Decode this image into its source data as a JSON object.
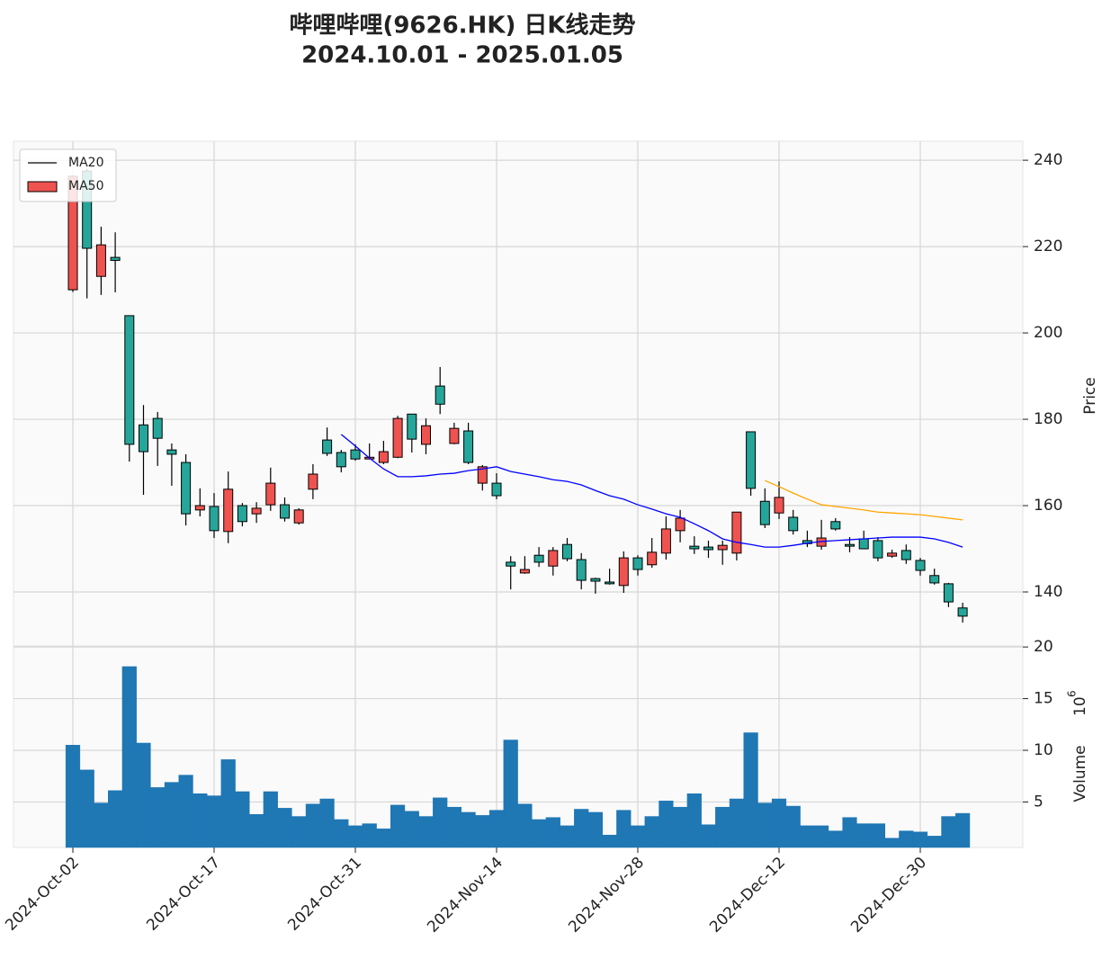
{
  "chart_data": {
    "type": "candlestick",
    "title": "哔哩哔哩(9626.HK) 日K线走势",
    "subtitle": "2024.10.01 - 2025.01.05",
    "categories": [
      "2024-Oct-02",
      null,
      null,
      null,
      null,
      null,
      null,
      null,
      null,
      null,
      "2024-Oct-17",
      null,
      null,
      null,
      null,
      null,
      null,
      null,
      null,
      null,
      "2024-Oct-31",
      null,
      null,
      null,
      null,
      null,
      null,
      null,
      null,
      null,
      "2024-Nov-14",
      null,
      null,
      null,
      null,
      null,
      null,
      null,
      null,
      null,
      "2024-Nov-28",
      null,
      null,
      null,
      null,
      null,
      null,
      null,
      null,
      null,
      "2024-Dec-12",
      null,
      null,
      null,
      null,
      null,
      null,
      null,
      null,
      null,
      "2024-Dec-30",
      null,
      null,
      null
    ],
    "open": [
      210,
      237.5,
      213.1,
      217.5,
      204,
      178.7,
      180.2,
      172.9,
      170,
      159,
      159.8,
      154,
      160,
      158.1,
      160.2,
      160.2,
      156,
      163.8,
      175.2,
      172.3,
      172.9,
      170.8,
      170,
      171.2,
      181.2,
      174.2,
      187.7,
      174.4,
      177.3,
      165.2,
      165.2,
      146.9,
      144.4,
      148.5,
      146,
      151,
      147.5,
      143.1,
      142.3,
      141.5,
      147.9,
      146.3,
      149,
      154.2,
      150.6,
      150.4,
      149.8,
      149,
      177.1,
      161,
      158.3,
      157.3,
      151.9,
      150.6,
      156.3,
      151,
      152.3,
      151.9,
      148.3,
      149.6,
      147.3,
      143.8,
      141.9,
      136.3
    ],
    "high": [
      236.5,
      238,
      224.6,
      223.3,
      204,
      183.3,
      181.7,
      174.4,
      171.9,
      164,
      162.9,
      167.9,
      160.6,
      160.8,
      168.8,
      161.9,
      159.4,
      169.6,
      178.1,
      172.9,
      174.2,
      174.4,
      175,
      180.8,
      181.2,
      180.2,
      192.1,
      179.2,
      179.2,
      169.4,
      167.5,
      148.3,
      148.3,
      150.4,
      150.4,
      152.5,
      149,
      143.3,
      145.4,
      149.4,
      148.5,
      152.5,
      157.5,
      159,
      152.9,
      151.9,
      151.9,
      158.5,
      177.1,
      164,
      165.6,
      159,
      154.2,
      156.7,
      157.1,
      152.7,
      154.2,
      152.7,
      149.8,
      151,
      147.9,
      145.4,
      142.1,
      137.5
    ],
    "low": [
      209.5,
      208,
      208.8,
      209.4,
      170.2,
      162.5,
      169.2,
      164.6,
      155.4,
      157.5,
      152.5,
      151.3,
      155.2,
      156,
      158.8,
      156.3,
      155.6,
      161.5,
      171.5,
      167.7,
      170.4,
      170.8,
      169.6,
      171,
      172.3,
      171.9,
      181.2,
      174.2,
      169.6,
      163.5,
      161.5,
      140.6,
      144.2,
      145.8,
      143.8,
      147.1,
      140.6,
      139.6,
      141.7,
      139.8,
      143.8,
      145.6,
      147.5,
      151.5,
      148.8,
      147.9,
      146.3,
      147.3,
      162.3,
      154.8,
      156.9,
      153.3,
      150.4,
      149.8,
      154.2,
      149.2,
      150,
      147.1,
      147.9,
      146.5,
      143.8,
      141.7,
      136.5,
      132.9
    ],
    "close": [
      236.3,
      219.6,
      220.4,
      216.8,
      174.2,
      172.5,
      175.6,
      171.9,
      158.1,
      160,
      154.2,
      163.8,
      156.3,
      159.4,
      165.2,
      157.1,
      159,
      167.3,
      172.1,
      169,
      170.8,
      171.2,
      172.5,
      180.2,
      175.4,
      178.5,
      183.5,
      177.9,
      170,
      169,
      162.3,
      146,
      145.2,
      146.9,
      149.6,
      147.7,
      142.7,
      142.5,
      141.9,
      147.9,
      145.2,
      149.2,
      154.6,
      157.1,
      150,
      149.8,
      150.8,
      158.5,
      164,
      155.6,
      161.9,
      154.2,
      151.2,
      152.5,
      154.6,
      150.6,
      150,
      147.9,
      149,
      147.5,
      145,
      142.1,
      137.7,
      134.4
    ],
    "up_color": "#ef5350",
    "down_color": "#26a69a",
    "ylim": [
      127.5,
      244.4
    ],
    "yticks": [
      140,
      160,
      180,
      200,
      220,
      240
    ],
    "ylabel": "Price",
    "grid": true,
    "legend": "upper left",
    "series": [
      {
        "name": "MA20",
        "color": "#0000ff",
        "values": [
          null,
          null,
          null,
          null,
          null,
          null,
          null,
          null,
          null,
          null,
          null,
          null,
          null,
          null,
          null,
          null,
          null,
          null,
          null,
          176.5,
          173.8,
          171,
          168.5,
          166.7,
          166.7,
          166.9,
          167.3,
          167.5,
          168.1,
          168.5,
          169,
          167.9,
          167.3,
          166.7,
          166,
          165.6,
          164.8,
          163.5,
          162.3,
          161.5,
          160.2,
          159.2,
          158.1,
          157.3,
          155.8,
          154.2,
          152.3,
          151.5,
          151,
          150.4,
          150.4,
          150.8,
          151.3,
          151.7,
          151.9,
          152.1,
          152.3,
          152.5,
          152.7,
          152.7,
          152.7,
          152.3,
          151.5,
          150.4
        ]
      },
      {
        "name": "MA50",
        "color": "#ffa500",
        "values": [
          null,
          null,
          null,
          null,
          null,
          null,
          null,
          null,
          null,
          null,
          null,
          null,
          null,
          null,
          null,
          null,
          null,
          null,
          null,
          null,
          null,
          null,
          null,
          null,
          null,
          null,
          null,
          null,
          null,
          null,
          null,
          null,
          null,
          null,
          null,
          null,
          null,
          null,
          null,
          null,
          null,
          null,
          null,
          null,
          null,
          null,
          null,
          null,
          null,
          165.8,
          164.4,
          162.9,
          161.5,
          160.2,
          159.8,
          159.4,
          159,
          158.5,
          158.3,
          158.1,
          157.9,
          157.5,
          157.1,
          156.7
        ]
      }
    ],
    "volume": {
      "values": [
        10.5,
        8.1,
        4.9,
        6.1,
        18.1,
        10.7,
        6.4,
        6.9,
        7.6,
        5.8,
        5.6,
        9.1,
        6.0,
        3.8,
        6.0,
        4.4,
        3.6,
        4.8,
        5.3,
        3.3,
        2.7,
        2.9,
        2.4,
        4.7,
        4.1,
        3.6,
        5.4,
        4.5,
        4.0,
        3.7,
        4.2,
        11.0,
        4.8,
        3.3,
        3.5,
        2.7,
        4.3,
        4.0,
        1.8,
        4.2,
        2.7,
        3.6,
        5.1,
        4.5,
        5.8,
        2.8,
        4.5,
        5.3,
        11.7,
        4.9,
        5.3,
        4.6,
        2.7,
        2.7,
        2.2,
        3.5,
        2.9,
        2.9,
        1.5,
        2.2,
        2.1,
        1.7,
        3.6,
        3.9
      ],
      "color": "#1f77b4",
      "ylim": [
        0.6,
        20.1
      ],
      "yticks": [
        5,
        10,
        15,
        20
      ],
      "ylabel": "Volume",
      "scale_base": "10",
      "scale_exponent": "6"
    }
  }
}
